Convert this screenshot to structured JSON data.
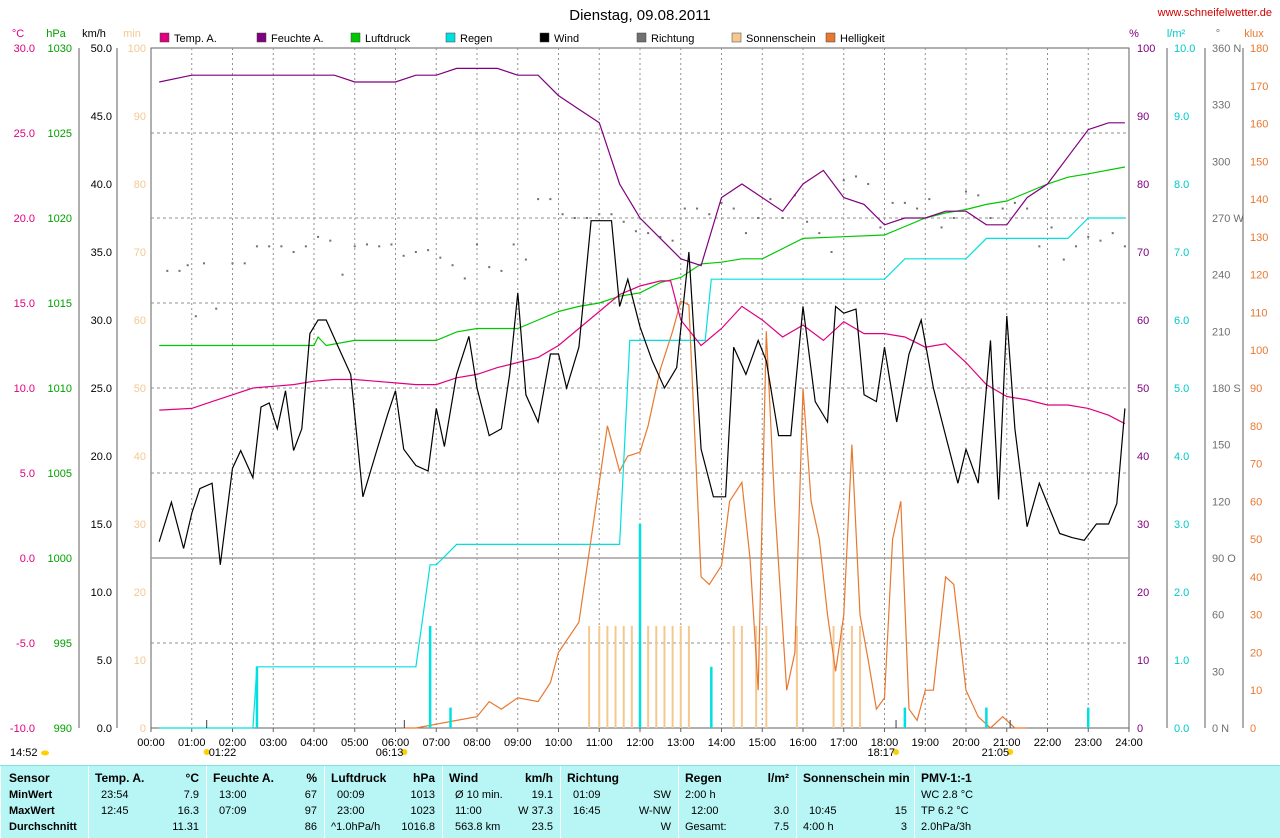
{
  "title": "Dienstag, 09.08.2011",
  "website": "www.schneifelwetter.de",
  "axes": {
    "temp": {
      "unit": "°C",
      "ticks": [
        "30.0",
        "25.0",
        "20.0",
        "15.0",
        "10.0",
        "5.0",
        "0.0",
        "-5.0",
        "-10.0"
      ],
      "range": [
        -10,
        30
      ],
      "color": "#e0007f"
    },
    "pressure": {
      "unit": "hPa",
      "ticks": [
        "1030",
        "1025",
        "1020",
        "1015",
        "1010",
        "1005",
        "1000",
        "995",
        "990"
      ],
      "range": [
        990,
        1030
      ],
      "color": "#00a000"
    },
    "wind": {
      "unit": "km/h",
      "ticks": [
        "50.0",
        "45.0",
        "40.0",
        "35.0",
        "30.0",
        "25.0",
        "20.0",
        "15.0",
        "10.0",
        "5.0",
        "0.0"
      ],
      "range": [
        0,
        50
      ],
      "color": "#000000"
    },
    "sun": {
      "unit": "min",
      "ticks": [
        "100",
        "90",
        "80",
        "70",
        "60",
        "50",
        "40",
        "30",
        "20",
        "10",
        "0"
      ],
      "range": [
        0,
        100
      ],
      "color": "#f5c890"
    },
    "humidity": {
      "unit": "%",
      "ticks": [
        "100",
        "90",
        "80",
        "70",
        "60",
        "50",
        "40",
        "30",
        "20",
        "10",
        "0"
      ],
      "range": [
        0,
        100
      ],
      "color": "#800080"
    },
    "rain": {
      "unit": "l/m²",
      "ticks": [
        "10.0",
        "9.0",
        "8.0",
        "7.0",
        "6.0",
        "5.0",
        "4.0",
        "3.0",
        "2.0",
        "1.0",
        "0.0"
      ],
      "range": [
        0,
        10
      ],
      "color": "#00c8c8"
    },
    "direction": {
      "unit": "°",
      "ticks": [
        "360 N",
        "330",
        "300",
        "270 W",
        "240",
        "210",
        "180 S",
        "150",
        "120",
        "90 O",
        "60",
        "30",
        "0 N"
      ],
      "range": [
        0,
        360
      ],
      "color": "#707070"
    },
    "brightness": {
      "unit": "klux",
      "ticks": [
        "180",
        "170",
        "160",
        "150",
        "140",
        "130",
        "120",
        "110",
        "100",
        "90",
        "80",
        "70",
        "60",
        "50",
        "40",
        "30",
        "20",
        "10",
        "0"
      ],
      "range": [
        0,
        180
      ],
      "color": "#e87830"
    }
  },
  "legend": [
    {
      "label": "Temp. A.",
      "color": "#e0007f"
    },
    {
      "label": "Feuchte A.",
      "color": "#800080"
    },
    {
      "label": "Luftdruck",
      "color": "#00c800"
    },
    {
      "label": "Regen",
      "color": "#00e0e0"
    },
    {
      "label": "Wind",
      "color": "#000000"
    },
    {
      "label": "Richtung",
      "color": "#707070"
    },
    {
      "label": "Sonnenschein",
      "color": "#f5c890"
    },
    {
      "label": "Helligkeit",
      "color": "#e87830"
    }
  ],
  "x_ticks": [
    "00:00",
    "01:00",
    "02:00",
    "03:00",
    "04:00",
    "05:00",
    "06:00",
    "07:00",
    "08:00",
    "09:00",
    "10:00",
    "11:00",
    "12:00",
    "13:00",
    "14:00",
    "15:00",
    "16:00",
    "17:00",
    "18:00",
    "19:00",
    "20:00",
    "21:00",
    "22:00",
    "23:00",
    "24:00"
  ],
  "markers": {
    "moonrise": "14:52",
    "moonset": "01:22",
    "sunrise": "06:13",
    "sunset": "18:17",
    "civil_dusk": "21:05"
  },
  "chart_data": {
    "type": "line",
    "title": "Dienstag, 09.08.2011",
    "x_unit": "hours",
    "xlim": [
      0,
      24
    ],
    "series": [
      {
        "name": "Temp. A.",
        "unit": "°C",
        "color": "#e0007f",
        "x": [
          0.2,
          1.0,
          1.5,
          2.0,
          2.5,
          3.0,
          3.5,
          4.0,
          4.5,
          5.0,
          5.5,
          6.0,
          6.5,
          7.0,
          7.5,
          8.0,
          8.5,
          9.0,
          9.5,
          10.0,
          10.5,
          11.0,
          11.5,
          12.0,
          12.5,
          12.75,
          13.0,
          13.5,
          14.0,
          14.5,
          15.0,
          15.5,
          16.0,
          16.5,
          17.0,
          17.5,
          18.0,
          18.5,
          19.0,
          19.5,
          20.0,
          20.5,
          21.0,
          21.5,
          22.0,
          22.5,
          23.0,
          23.5,
          23.9
        ],
        "values": [
          8.7,
          8.8,
          9.2,
          9.6,
          10.0,
          10.1,
          10.2,
          10.4,
          10.5,
          10.5,
          10.4,
          10.3,
          10.2,
          10.2,
          10.6,
          10.8,
          11.2,
          11.5,
          11.8,
          12.5,
          13.5,
          14.5,
          15.5,
          16.0,
          16.3,
          16.3,
          14.0,
          12.5,
          13.5,
          14.8,
          14.0,
          13.0,
          13.7,
          12.8,
          13.9,
          13.2,
          13.2,
          13.0,
          12.4,
          12.6,
          11.5,
          10.2,
          9.5,
          9.3,
          9.0,
          9.0,
          8.8,
          8.4,
          7.9
        ]
      },
      {
        "name": "Feuchte A.",
        "unit": "%",
        "color": "#800080",
        "x": [
          0.2,
          1.0,
          1.5,
          2.0,
          2.5,
          3.0,
          3.5,
          4.0,
          4.5,
          5.0,
          5.5,
          6.0,
          6.5,
          7.0,
          7.5,
          8.0,
          8.5,
          9.0,
          9.5,
          10.0,
          10.5,
          11.0,
          11.5,
          12.0,
          12.5,
          13.0,
          13.5,
          14.0,
          14.5,
          15.0,
          15.5,
          16.0,
          16.5,
          17.0,
          17.5,
          18.0,
          18.5,
          19.0,
          19.5,
          20.0,
          20.5,
          21.0,
          21.5,
          22.0,
          22.5,
          23.0,
          23.5,
          23.9
        ],
        "values": [
          95,
          96,
          96,
          96,
          96,
          96,
          96,
          96,
          96,
          95,
          95,
          95,
          96,
          96,
          97,
          97,
          97,
          96,
          96,
          93,
          91,
          89,
          80,
          75,
          72,
          69,
          68,
          78,
          80,
          78,
          76,
          80,
          82,
          78,
          77,
          74,
          75,
          75,
          76,
          76,
          74,
          74,
          78,
          80,
          84,
          88,
          89,
          89
        ]
      },
      {
        "name": "Luftdruck",
        "unit": "hPa",
        "color": "#00c800",
        "x": [
          0.2,
          3.0,
          4.0,
          4.1,
          4.3,
          5.0,
          6.0,
          7.0,
          7.5,
          8.0,
          9.0,
          9.5,
          10.0,
          10.5,
          11.0,
          11.5,
          12.0,
          12.5,
          13.0,
          13.5,
          14.0,
          14.5,
          15.0,
          15.5,
          16.0,
          17.0,
          18.0,
          18.5,
          19.0,
          19.5,
          20.0,
          20.5,
          21.0,
          21.5,
          22.0,
          22.5,
          23.0,
          23.9
        ],
        "values": [
          1012.5,
          1012.5,
          1012.5,
          1013.0,
          1012.5,
          1012.8,
          1012.8,
          1012.8,
          1013.3,
          1013.5,
          1013.5,
          1014.0,
          1014.5,
          1014.8,
          1015.0,
          1015.4,
          1015.6,
          1016.2,
          1016.5,
          1017.3,
          1017.4,
          1017.6,
          1017.6,
          1018.2,
          1018.8,
          1018.9,
          1019.0,
          1019.5,
          1020.0,
          1020.3,
          1020.5,
          1020.8,
          1021.0,
          1021.5,
          1022.0,
          1022.4,
          1022.6,
          1023.0
        ]
      },
      {
        "name": "Regen",
        "unit": "l/m²",
        "color": "#00e0e0",
        "x": [
          0.2,
          2.5,
          2.6,
          6.5,
          6.85,
          7.0,
          7.5,
          8.0,
          11.5,
          11.75,
          12.0,
          12.5,
          13.0,
          13.6,
          13.75,
          14.0,
          15.0,
          16.0,
          17.0,
          17.5,
          18.0,
          18.5,
          19.0,
          19.5,
          20.0,
          20.5,
          21.0,
          21.5,
          22.0,
          22.5,
          23.0,
          23.5,
          23.9
        ],
        "values": [
          0,
          0,
          0.9,
          0.9,
          2.4,
          2.4,
          2.7,
          2.7,
          2.7,
          5.7,
          5.7,
          5.7,
          5.7,
          5.7,
          6.6,
          6.6,
          6.6,
          6.6,
          6.6,
          6.6,
          6.6,
          6.9,
          6.9,
          6.9,
          6.9,
          7.2,
          7.2,
          7.2,
          7.2,
          7.2,
          7.5,
          7.5,
          7.5
        ]
      },
      {
        "name": "Wind",
        "unit": "km/h",
        "color": "#000000",
        "x": [
          0.2,
          0.5,
          0.8,
          1.0,
          1.2,
          1.5,
          1.7,
          2.0,
          2.2,
          2.5,
          2.7,
          2.9,
          3.1,
          3.3,
          3.5,
          3.7,
          3.9,
          4.1,
          4.3,
          4.6,
          4.9,
          5.2,
          5.5,
          5.8,
          6.0,
          6.2,
          6.5,
          6.8,
          7.0,
          7.2,
          7.5,
          7.8,
          8.0,
          8.3,
          8.6,
          8.8,
          9.0,
          9.2,
          9.5,
          9.8,
          10.0,
          10.2,
          10.5,
          10.8,
          11.0,
          11.3,
          11.5,
          11.7,
          12.0,
          12.3,
          12.6,
          12.9,
          13.2,
          13.5,
          13.8,
          14.1,
          14.3,
          14.6,
          14.9,
          15.1,
          15.4,
          15.7,
          16.0,
          16.3,
          16.6,
          16.8,
          17.0,
          17.3,
          17.5,
          17.8,
          18.0,
          18.3,
          18.6,
          18.9,
          19.2,
          19.5,
          19.8,
          20.0,
          20.3,
          20.6,
          20.8,
          21.0,
          21.2,
          21.5,
          21.8,
          22.0,
          22.3,
          22.6,
          22.9,
          23.2,
          23.5,
          23.7,
          23.9
        ],
        "values": [
          13.7,
          16.6,
          13.2,
          15.8,
          17.6,
          18.0,
          12.0,
          19.1,
          20.4,
          18.4,
          23.6,
          23.9,
          22.0,
          24.8,
          20.4,
          22.0,
          29.0,
          30.0,
          30.0,
          28.0,
          26.0,
          17.0,
          20.0,
          23.0,
          24.8,
          20.5,
          19.3,
          18.9,
          23.5,
          20.7,
          26.0,
          28.8,
          25.0,
          21.5,
          22.0,
          26.0,
          32.0,
          24.5,
          22.5,
          27.5,
          27.5,
          25.0,
          28.0,
          37.3,
          37.3,
          37.3,
          31.0,
          33.0,
          29.5,
          27.0,
          25.0,
          26.5,
          35.0,
          20.5,
          17.0,
          17.0,
          28.0,
          26.0,
          28.5,
          27.0,
          21.5,
          21.5,
          31.0,
          24.0,
          22.5,
          31.0,
          30.5,
          30.8,
          24.5,
          24.0,
          28.0,
          22.5,
          27.5,
          30.0,
          25.0,
          21.5,
          18.0,
          20.5,
          18.0,
          28.5,
          16.8,
          30.3,
          22.0,
          14.8,
          18.0,
          16.5,
          14.3,
          14.0,
          13.8,
          15.0,
          15.0,
          16.5,
          23.5
        ]
      },
      {
        "name": "Richtung",
        "unit": "°",
        "color": "#707070",
        "x": [
          0.4,
          0.7,
          0.9,
          1.1,
          1.3,
          1.6,
          2.0,
          2.3,
          2.6,
          2.9,
          3.2,
          3.5,
          3.8,
          4.1,
          4.4,
          4.7,
          5.0,
          5.3,
          5.6,
          5.9,
          6.2,
          6.5,
          6.8,
          7.1,
          7.4,
          7.7,
          8.0,
          8.3,
          8.6,
          8.9,
          9.2,
          9.5,
          9.8,
          10.1,
          10.4,
          10.7,
          11.0,
          11.3,
          11.6,
          11.9,
          12.2,
          12.5,
          12.8,
          13.1,
          13.4,
          13.7,
          14.0,
          14.3,
          14.6,
          14.9,
          15.2,
          15.5,
          15.8,
          16.1,
          16.4,
          16.7,
          17.0,
          17.3,
          17.6,
          17.9,
          18.2,
          18.5,
          18.8,
          19.1,
          19.4,
          19.7,
          20.0,
          20.3,
          20.6,
          20.9,
          21.2,
          21.5,
          21.8,
          22.1,
          22.4,
          22.7,
          23.0,
          23.3,
          23.6,
          23.9
        ],
        "values": [
          242,
          242,
          245,
          218,
          246,
          222,
          246,
          246,
          255,
          255,
          255,
          252,
          255,
          260,
          258,
          240,
          255,
          256,
          255,
          256,
          250,
          252,
          253,
          249,
          245,
          238,
          256,
          244,
          242,
          256,
          248,
          280,
          280,
          272,
          270,
          270,
          272,
          272,
          268,
          263,
          262,
          260,
          258,
          275,
          275,
          272,
          278,
          275,
          262,
          270,
          280,
          270,
          282,
          268,
          262,
          252,
          290,
          292,
          288,
          265,
          278,
          278,
          275,
          280,
          265,
          270,
          284,
          282,
          270,
          275,
          278,
          275,
          255,
          265,
          248,
          255,
          260,
          258,
          262,
          255
        ]
      },
      {
        "name": "Sonnenschein",
        "unit": "min",
        "color": "#f5c890",
        "x": [
          10.75,
          11.0,
          11.2,
          11.4,
          11.6,
          11.8,
          12.2,
          12.4,
          12.6,
          12.8,
          13.0,
          13.2,
          14.3,
          14.5,
          14.85,
          15.1,
          15.85,
          16.75,
          16.95,
          17.2,
          17.4
        ],
        "values": [
          15,
          15,
          15,
          15,
          15,
          15,
          15,
          15,
          15,
          15,
          15,
          15,
          15,
          15,
          15,
          15,
          15,
          15,
          15,
          15,
          15
        ]
      },
      {
        "name": "Helligkeit",
        "unit": "klux",
        "color": "#e87830",
        "x": [
          6.2,
          6.5,
          7.0,
          7.5,
          8.0,
          8.3,
          8.6,
          9.0,
          9.5,
          9.8,
          10.0,
          10.5,
          10.8,
          11.0,
          11.2,
          11.5,
          11.7,
          12.0,
          12.2,
          12.5,
          12.8,
          13.0,
          13.2,
          13.5,
          13.7,
          14.0,
          14.2,
          14.5,
          14.7,
          14.9,
          15.1,
          15.3,
          15.6,
          15.8,
          16.0,
          16.2,
          16.4,
          16.6,
          16.8,
          17.0,
          17.2,
          17.4,
          17.6,
          17.8,
          18.0,
          18.2,
          18.4,
          18.6,
          18.8,
          19.0,
          19.2,
          19.5,
          19.7,
          20.0,
          20.3,
          20.6,
          20.9,
          21.2,
          21.5
        ],
        "values": [
          0,
          0,
          1,
          2,
          3,
          7,
          5,
          8,
          7,
          12,
          20,
          28,
          50,
          65,
          80,
          68,
          72,
          73,
          80,
          95,
          105,
          113,
          112,
          40,
          38,
          43,
          60,
          65,
          45,
          10,
          105,
          60,
          10,
          20,
          90,
          60,
          50,
          30,
          15,
          30,
          75,
          30,
          18,
          5,
          8,
          50,
          60,
          5,
          2,
          10,
          10,
          40,
          38,
          10,
          3,
          0,
          3,
          0,
          0
        ]
      }
    ]
  },
  "summary": {
    "sensor": {
      "header": "Sensor",
      "rows": [
        "MinWert",
        "MaxWert",
        "Durchschnitt"
      ]
    },
    "temp": {
      "header": "Temp. A.",
      "unit": "°C",
      "min_time": "23:54",
      "min": "7.9",
      "max_time": "12:45",
      "max": "16.3",
      "avg": "11.31"
    },
    "humidity": {
      "header": "Feuchte A.",
      "unit": "%",
      "min_time": "13:00",
      "min": "67",
      "max_time": "07:09",
      "max": "97",
      "avg": "86"
    },
    "pressure": {
      "header": "Luftdruck",
      "unit": "hPa",
      "min_time": "00:09",
      "min": "1013",
      "max_time": "23:00",
      "max": "1023",
      "trend": "^1.0hPa/h",
      "avg": "1016.8"
    },
    "wind": {
      "header": "Wind",
      "unit": "km/h",
      "min_label": "Ø 10 min.",
      "min": "19.1",
      "max_time": "11:00",
      "max": "W 37.3",
      "distance": "563.8 km",
      "avg": "23.5"
    },
    "direction": {
      "header": "Richtung",
      "min_time": "01:09",
      "min": "SW",
      "max_time": "16:45",
      "max": "W-NW",
      "avg": "W"
    },
    "rain": {
      "header": "Regen",
      "unit": "l/m²",
      "row1": "2:00 h",
      "row2_time": "12:00",
      "row2": "3.0",
      "total_label": "Gesamt:",
      "total": "7.5"
    },
    "sunshine": {
      "header": "Sonnenschein min",
      "max_time": "10:45",
      "max": "15",
      "total_label": "4:00 h",
      "total": "3"
    },
    "pmv": {
      "header": "PMV-1:-1",
      "wc": "WC 2.8 °C",
      "tp": "TP 6.2 °C",
      "trend": "2.0hPa/3h"
    }
  }
}
